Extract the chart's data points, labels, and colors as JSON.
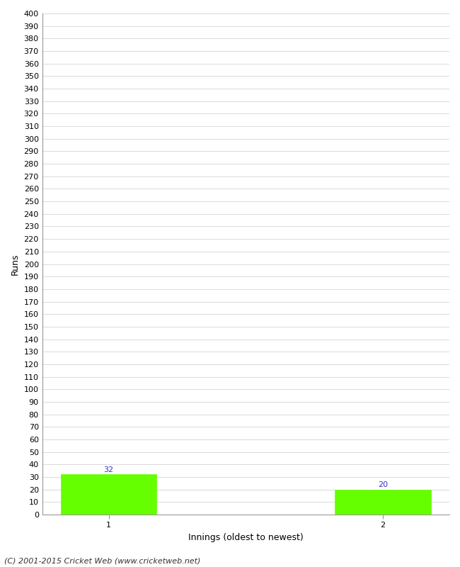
{
  "categories": [
    "1",
    "2"
  ],
  "values": [
    32,
    20
  ],
  "bar_color": "#66ff00",
  "bar_edge_color": "#66ff00",
  "ylabel": "Runs",
  "xlabel": "Innings (oldest to newest)",
  "ylim": [
    0,
    400
  ],
  "ytick_step": 10,
  "bar_label_color": "#3333cc",
  "bar_label_fontsize": 8,
  "axis_label_fontsize": 9,
  "tick_fontsize": 8,
  "footnote": "(C) 2001-2015 Cricket Web (www.cricketweb.net)",
  "footnote_fontsize": 8,
  "background_color": "#ffffff",
  "grid_color": "#cccccc",
  "bar_width": 0.35
}
